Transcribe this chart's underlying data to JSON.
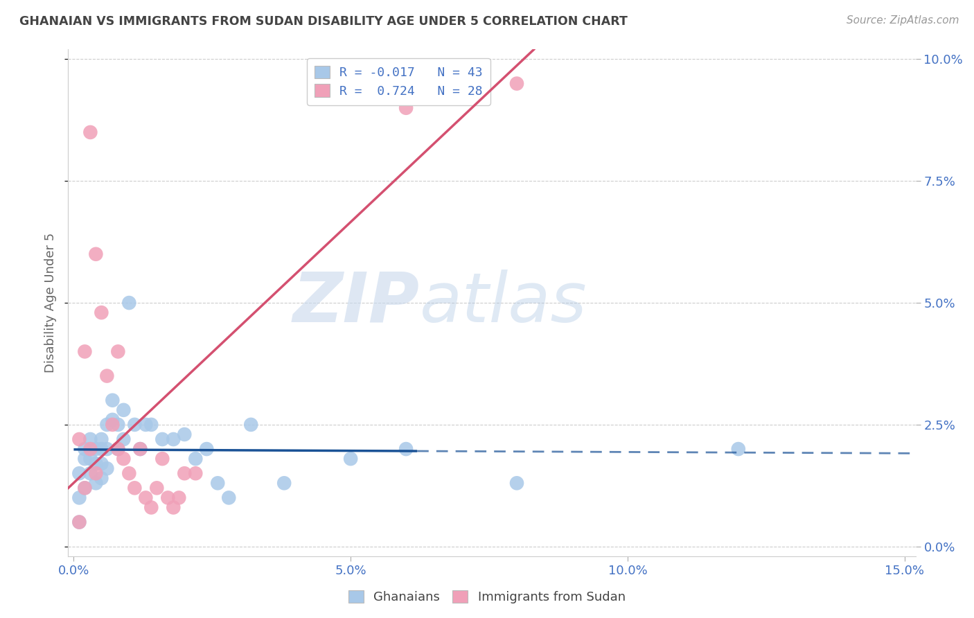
{
  "title": "GHANAIAN VS IMMIGRANTS FROM SUDAN DISABILITY AGE UNDER 5 CORRELATION CHART",
  "source": "Source: ZipAtlas.com",
  "ylabel": "Disability Age Under 5",
  "ytick_vals": [
    0.0,
    0.025,
    0.05,
    0.075,
    0.1
  ],
  "ytick_labels": [
    "0.0%",
    "2.5%",
    "5.0%",
    "7.5%",
    "10.0%"
  ],
  "xtick_vals": [
    0.0,
    0.05,
    0.1,
    0.15
  ],
  "xtick_labels": [
    "0.0%",
    "5.0%",
    "10.0%",
    "15.0%"
  ],
  "xlim": [
    -0.001,
    0.152
  ],
  "ylim": [
    -0.002,
    0.102
  ],
  "watermark_zip": "ZIP",
  "watermark_atlas": "atlas",
  "color_ghanaian": "#a8c8e8",
  "color_sudan": "#f0a0b8",
  "line_color_ghanaian": "#1a5296",
  "line_color_sudan": "#d45070",
  "background": "#ffffff",
  "grid_color": "#cccccc",
  "tick_color": "#4472c4",
  "title_color": "#444444",
  "r_ghanaian": -0.017,
  "r_sudan": 0.724,
  "n_ghanaian": 43,
  "n_sudan": 28,
  "ghanaian_x": [
    0.001,
    0.001,
    0.001,
    0.002,
    0.002,
    0.002,
    0.003,
    0.003,
    0.003,
    0.004,
    0.004,
    0.004,
    0.005,
    0.005,
    0.005,
    0.005,
    0.006,
    0.006,
    0.006,
    0.007,
    0.007,
    0.008,
    0.008,
    0.009,
    0.009,
    0.01,
    0.011,
    0.012,
    0.013,
    0.014,
    0.016,
    0.018,
    0.02,
    0.022,
    0.024,
    0.026,
    0.028,
    0.032,
    0.038,
    0.05,
    0.06,
    0.08,
    0.12
  ],
  "ghanaian_y": [
    0.005,
    0.01,
    0.015,
    0.012,
    0.018,
    0.02,
    0.015,
    0.018,
    0.022,
    0.013,
    0.017,
    0.02,
    0.014,
    0.017,
    0.02,
    0.022,
    0.016,
    0.02,
    0.025,
    0.026,
    0.03,
    0.02,
    0.025,
    0.022,
    0.028,
    0.05,
    0.025,
    0.02,
    0.025,
    0.025,
    0.022,
    0.022,
    0.023,
    0.018,
    0.02,
    0.013,
    0.01,
    0.025,
    0.013,
    0.018,
    0.02,
    0.013,
    0.02
  ],
  "sudan_x": [
    0.001,
    0.001,
    0.002,
    0.002,
    0.003,
    0.003,
    0.004,
    0.004,
    0.005,
    0.006,
    0.007,
    0.008,
    0.008,
    0.009,
    0.01,
    0.011,
    0.012,
    0.013,
    0.014,
    0.015,
    0.016,
    0.017,
    0.018,
    0.019,
    0.02,
    0.022,
    0.06,
    0.08
  ],
  "sudan_y": [
    0.005,
    0.022,
    0.012,
    0.04,
    0.02,
    0.085,
    0.015,
    0.06,
    0.048,
    0.035,
    0.025,
    0.02,
    0.04,
    0.018,
    0.015,
    0.012,
    0.02,
    0.01,
    0.008,
    0.012,
    0.018,
    0.01,
    0.008,
    0.01,
    0.015,
    0.015,
    0.09,
    0.095
  ]
}
